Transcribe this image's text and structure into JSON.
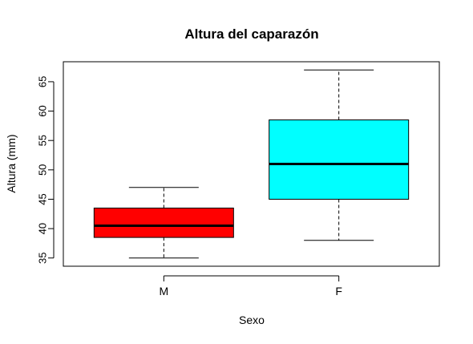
{
  "chart_data": {
    "type": "boxplot",
    "title": "Altura del caparazón",
    "xlabel": "Sexo",
    "ylabel": "Altura (mm)",
    "ylim": [
      33.6,
      68.4
    ],
    "yticks": [
      35,
      40,
      45,
      50,
      55,
      60,
      65
    ],
    "grid": false,
    "categories": [
      "M",
      "F"
    ],
    "boxes": [
      {
        "category": "M",
        "min": 35,
        "q1": 38.5,
        "median": 40.5,
        "q3": 43.5,
        "max": 47,
        "color": "#FF0000"
      },
      {
        "category": "F",
        "min": 38,
        "q1": 45,
        "median": 51,
        "q3": 58.5,
        "max": 67,
        "color": "#00FFFF"
      }
    ]
  }
}
